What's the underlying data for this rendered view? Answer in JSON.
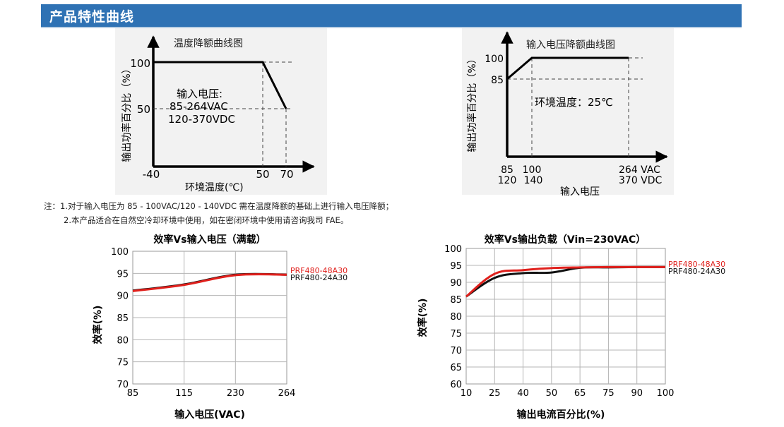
{
  "header": {
    "title": "产品特性曲线"
  },
  "notes": [
    "注：1.对于输入电压为 85 - 100VAC/120 - 140VDC 需在温度降额的基础上进行输入电压降额；",
    "2.本产品适合在自然空冷却环境中使用，如在密闭环境中使用请咨询我司 FAE。"
  ],
  "colors": {
    "header": "#2f72b4",
    "line_red": "#e0201c",
    "line_black": "#111111"
  },
  "chart_data": [
    {
      "type": "line",
      "title": "温度降额曲线图",
      "xlabel": "环境温度(℃)",
      "ylabel": "输出功率百分比（%）",
      "x_ticks": [
        "-40",
        "50",
        "70"
      ],
      "y_ticks": [
        "100",
        "50"
      ],
      "annotation": [
        "输入电压:",
        "85-264VAC",
        "120-370VDC"
      ],
      "series": [
        {
          "x": [
            -40,
            50,
            70
          ],
          "y": [
            100,
            100,
            50
          ]
        }
      ]
    },
    {
      "type": "line",
      "title": "输入电压降额曲线图",
      "xlabel": "输入电压",
      "ylabel": "输出功率百分比（%）",
      "x_ticks_ac": [
        "85",
        "100",
        "264 VAC"
      ],
      "x_ticks_dc": [
        "120",
        "140",
        "370 VDC"
      ],
      "y_ticks": [
        "100",
        "85"
      ],
      "annotation": "环境温度：25℃",
      "series": [
        {
          "x": [
            85,
            100,
            264
          ],
          "y": [
            85,
            100,
            100
          ]
        }
      ]
    },
    {
      "type": "line",
      "title": "效率Vs输入电压（满载）",
      "xlabel": "输入电压(VAC)",
      "ylabel": "效率(%)",
      "categories": [
        "85",
        "115",
        "230",
        "264"
      ],
      "y_ticks": [
        "100",
        "95",
        "90",
        "85",
        "80",
        "75",
        "70"
      ],
      "ylim": [
        70,
        100
      ],
      "series": [
        {
          "name": "PRF480-48A30",
          "color": "#e0201c",
          "values": [
            91.0,
            92.4,
            94.6,
            94.7
          ]
        },
        {
          "name": "PRF480-24A30",
          "color": "#111111",
          "values": [
            91.1,
            92.5,
            94.7,
            94.7
          ]
        }
      ]
    },
    {
      "type": "line",
      "title": "效率Vs输出负载（Vin=230VAC）",
      "xlabel": "输出电流百分比(%)",
      "ylabel": "效率(%)",
      "categories": [
        "10",
        "25",
        "40",
        "50",
        "65",
        "75",
        "90",
        "100"
      ],
      "y_ticks": [
        "100",
        "95",
        "90",
        "85",
        "80",
        "75",
        "70",
        "65",
        "60"
      ],
      "ylim": [
        60,
        100
      ],
      "series": [
        {
          "name": "PRF480-48A30",
          "color": "#e0201c",
          "values": [
            85.8,
            92.5,
            93.6,
            94.2,
            94.4,
            94.5,
            94.5,
            94.5
          ]
        },
        {
          "name": "PRF480-24A30",
          "color": "#111111",
          "values": [
            85.8,
            91.3,
            92.7,
            92.9,
            94.3,
            94.4,
            94.5,
            94.5
          ]
        }
      ]
    }
  ]
}
